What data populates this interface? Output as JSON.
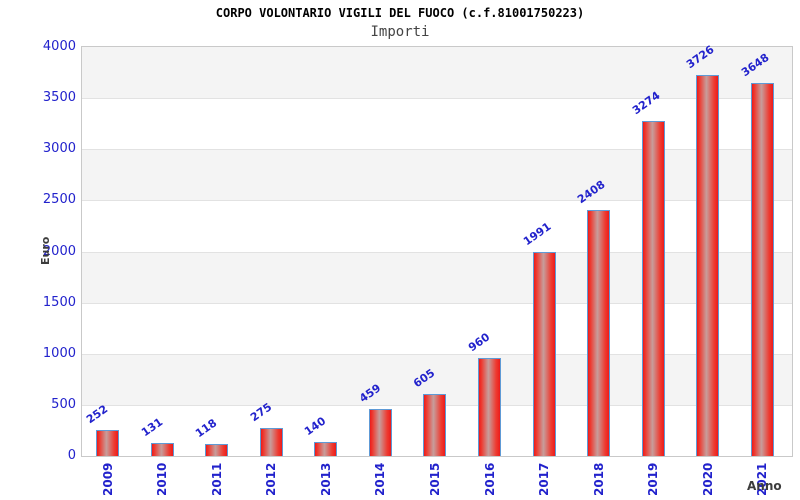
{
  "title": "CORPO VOLONTARIO VIGILI DEL FUOCO (c.f.81001750223)",
  "subtitle": "Importi",
  "chart_data": {
    "type": "bar",
    "title": "CORPO VOLONTARIO VIGILI DEL FUOCO (c.f.81001750223)",
    "subtitle": "Importi",
    "categories": [
      "2009",
      "2010",
      "2011",
      "2012",
      "2013",
      "2014",
      "2015",
      "2016",
      "2017",
      "2018",
      "2019",
      "2020",
      "2021"
    ],
    "values": [
      252,
      131,
      118,
      275,
      140,
      459,
      605,
      960,
      1991,
      2408,
      3274,
      3726,
      3648
    ],
    "xlabel": "Anno",
    "ylabel": "Euro",
    "ylim": [
      0,
      4000
    ],
    "ytick_step": 500,
    "ytick_labels": [
      "0",
      "500",
      "1000",
      "1500",
      "2000",
      "2500",
      "3000",
      "3500",
      "4000"
    ],
    "legend": "none",
    "grid": "horizontal-alternating-bands"
  },
  "colors": {
    "label_blue": "#2222cc",
    "bar_red": "#ec1b1b",
    "bar_red_bright": "#ee3a30",
    "bar_highlight": "#c79e9c",
    "bar_border": "#5e9ad6",
    "band_gray": "#f4f4f4",
    "band_white": "#ffffff",
    "band_line": "#e2e2e2",
    "plot_border": "#c9c9c9",
    "title_color": "#000000",
    "subtitle_color": "#444444",
    "axis_title_color": "#3c3c3c"
  }
}
